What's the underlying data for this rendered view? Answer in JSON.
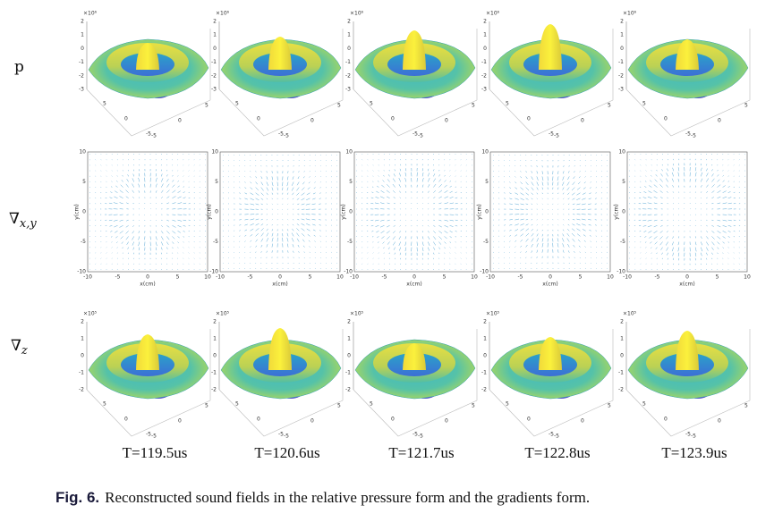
{
  "figure": {
    "row_labels": [
      {
        "symbol": "p"
      },
      {
        "symbol": "∇",
        "sub": "x,y"
      },
      {
        "symbol": "∇",
        "sub": "z"
      }
    ],
    "surface_p": {
      "exponent": "×10⁶",
      "zticks": [
        2,
        1,
        0,
        -1,
        -2,
        -3
      ],
      "left_ticks": [
        5,
        0,
        -5
      ],
      "right_ticks": [
        -5,
        0,
        5
      ]
    },
    "quiver": {
      "xlabel": "x(cm)",
      "ylabel": "y(cm)",
      "xticks": [
        -10,
        -5,
        0,
        5,
        10
      ],
      "yticks": [
        10,
        5,
        0,
        -5,
        -10
      ]
    },
    "surface_z": {
      "exponent": "×10⁵",
      "zticks": [
        2,
        1,
        0,
        -1,
        -2
      ],
      "left_ticks": [
        5,
        0,
        -5
      ],
      "right_ticks": [
        -5,
        0,
        5
      ]
    },
    "times": [
      "T=119.5us",
      "T=120.6us",
      "T=121.7us",
      "T=122.8us",
      "T=123.9us"
    ],
    "caption": {
      "label": "Fig. 6.",
      "text": "Reconstructed sound fields in the relative pressure form and the gradients form."
    }
  }
}
